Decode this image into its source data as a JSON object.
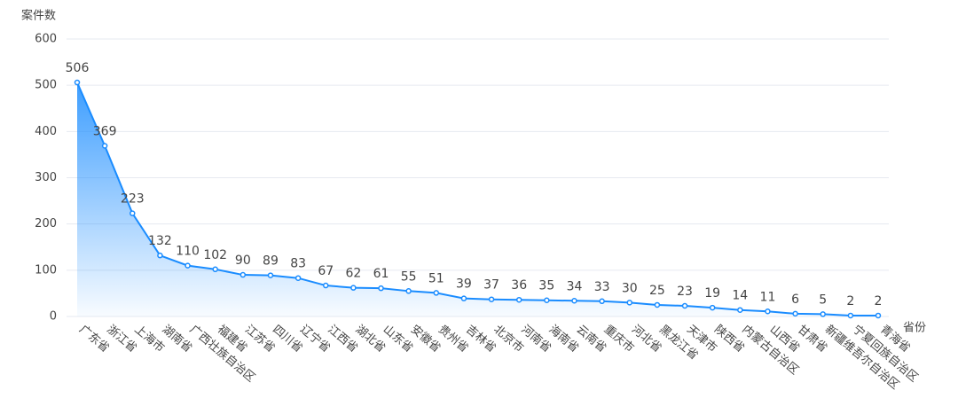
{
  "chart_data": {
    "type": "area",
    "y_axis_label": "案件数",
    "x_axis_label": "省份",
    "categories": [
      "广东省",
      "浙江省",
      "上海市",
      "湖南省",
      "广西壮族自治区",
      "福建省",
      "江苏省",
      "四川省",
      "辽宁省",
      "江西省",
      "湖北省",
      "山东省",
      "安徽省",
      "贵州省",
      "吉林省",
      "北京市",
      "河南省",
      "海南省",
      "云南省",
      "重庆市",
      "河北省",
      "黑龙江省",
      "天津市",
      "陕西省",
      "内蒙古自治区",
      "山西省",
      "甘肃省",
      "新疆维吾尔自治区",
      "宁夏回族自治区",
      "青海省"
    ],
    "values": [
      506,
      369,
      223,
      132,
      110,
      102,
      90,
      89,
      83,
      67,
      62,
      61,
      55,
      51,
      39,
      37,
      36,
      35,
      34,
      33,
      30,
      25,
      23,
      19,
      14,
      11,
      6,
      5,
      2,
      2
    ],
    "color": "#1a8cff",
    "ylim": [
      0,
      600
    ],
    "yticks": [
      0,
      100,
      200,
      300,
      400,
      500,
      600
    ],
    "grid": true
  }
}
